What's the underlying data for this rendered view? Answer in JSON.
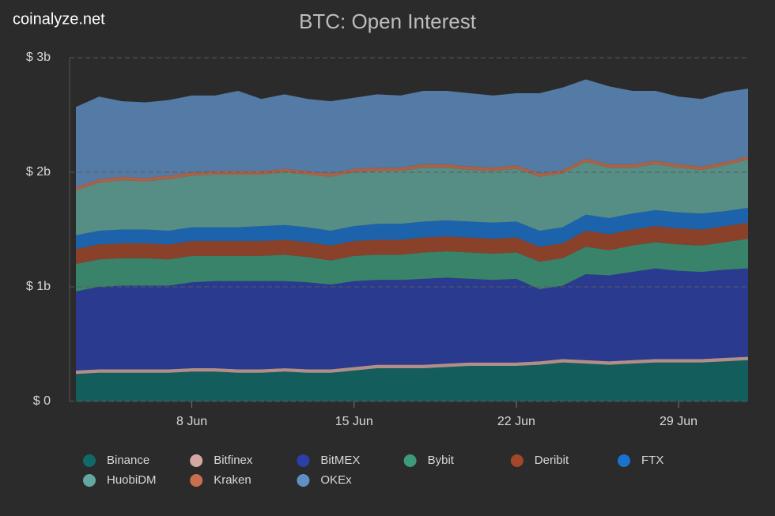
{
  "brand": "coinalyze.net",
  "chart_data": {
    "type": "stacked-area",
    "title": "BTC: Open Interest",
    "categories": [
      null,
      null,
      null,
      null,
      null,
      "8 Jun",
      null,
      null,
      null,
      null,
      null,
      null,
      "15 Jun",
      null,
      null,
      null,
      null,
      null,
      null,
      "22 Jun",
      null,
      null,
      null,
      null,
      null,
      null,
      "29 Jun",
      null,
      null,
      null
    ],
    "ylim": [
      0,
      3
    ],
    "yticks": [
      {
        "value": 0,
        "label": "$ 0"
      },
      {
        "value": 1,
        "label": "$ 1b"
      },
      {
        "value": 2,
        "label": "$ 2b"
      },
      {
        "value": 3,
        "label": "$ 3b"
      }
    ],
    "grid": true,
    "series": [
      {
        "name": "Binance",
        "color": "#0f6a6a",
        "values": [
          0.24,
          0.25,
          0.25,
          0.25,
          0.25,
          0.26,
          0.26,
          0.25,
          0.25,
          0.26,
          0.25,
          0.25,
          0.27,
          0.29,
          0.29,
          0.29,
          0.3,
          0.31,
          0.31,
          0.31,
          0.32,
          0.34,
          0.33,
          0.32,
          0.33,
          0.34,
          0.34,
          0.34,
          0.35,
          0.36
        ]
      },
      {
        "name": "Bitfinex",
        "color": "#d4a8a0",
        "values": [
          0.03,
          0.03,
          0.03,
          0.03,
          0.03,
          0.03,
          0.03,
          0.03,
          0.03,
          0.03,
          0.03,
          0.03,
          0.03,
          0.03,
          0.03,
          0.03,
          0.03,
          0.03,
          0.03,
          0.03,
          0.03,
          0.03,
          0.03,
          0.03,
          0.03,
          0.03,
          0.03,
          0.03,
          0.03,
          0.03
        ]
      },
      {
        "name": "BitMEX",
        "color": "#2a3fa8",
        "values": [
          0.69,
          0.72,
          0.73,
          0.73,
          0.73,
          0.75,
          0.76,
          0.77,
          0.77,
          0.76,
          0.76,
          0.74,
          0.75,
          0.74,
          0.74,
          0.75,
          0.75,
          0.73,
          0.72,
          0.73,
          0.63,
          0.64,
          0.75,
          0.75,
          0.77,
          0.79,
          0.77,
          0.76,
          0.77,
          0.77
        ]
      },
      {
        "name": "Bybit",
        "color": "#3d9a7a",
        "values": [
          0.24,
          0.24,
          0.24,
          0.24,
          0.23,
          0.23,
          0.22,
          0.22,
          0.22,
          0.23,
          0.22,
          0.21,
          0.22,
          0.22,
          0.22,
          0.23,
          0.23,
          0.23,
          0.23,
          0.23,
          0.24,
          0.24,
          0.24,
          0.22,
          0.23,
          0.23,
          0.23,
          0.23,
          0.24,
          0.26
        ]
      },
      {
        "name": "Deribit",
        "color": "#a2472a",
        "values": [
          0.13,
          0.13,
          0.13,
          0.13,
          0.13,
          0.13,
          0.13,
          0.13,
          0.13,
          0.13,
          0.13,
          0.13,
          0.13,
          0.13,
          0.13,
          0.13,
          0.13,
          0.13,
          0.13,
          0.13,
          0.13,
          0.13,
          0.14,
          0.14,
          0.14,
          0.14,
          0.14,
          0.14,
          0.14,
          0.14
        ]
      },
      {
        "name": "FTX",
        "color": "#1a72cc",
        "values": [
          0.12,
          0.12,
          0.12,
          0.12,
          0.12,
          0.12,
          0.12,
          0.12,
          0.13,
          0.13,
          0.13,
          0.13,
          0.13,
          0.14,
          0.14,
          0.14,
          0.14,
          0.14,
          0.14,
          0.14,
          0.14,
          0.14,
          0.14,
          0.14,
          0.14,
          0.14,
          0.14,
          0.14,
          0.13,
          0.13
        ]
      },
      {
        "name": "HuobiDM",
        "color": "#62a89e",
        "values": [
          0.39,
          0.42,
          0.43,
          0.42,
          0.45,
          0.45,
          0.46,
          0.46,
          0.45,
          0.46,
          0.46,
          0.47,
          0.47,
          0.46,
          0.46,
          0.47,
          0.46,
          0.45,
          0.45,
          0.46,
          0.47,
          0.47,
          0.46,
          0.44,
          0.4,
          0.4,
          0.39,
          0.38,
          0.4,
          0.42
        ]
      },
      {
        "name": "Kraken",
        "color": "#c96f50",
        "values": [
          0.03,
          0.03,
          0.03,
          0.03,
          0.03,
          0.03,
          0.03,
          0.03,
          0.03,
          0.03,
          0.03,
          0.03,
          0.03,
          0.03,
          0.03,
          0.03,
          0.03,
          0.03,
          0.03,
          0.03,
          0.03,
          0.03,
          0.03,
          0.03,
          0.03,
          0.03,
          0.03,
          0.03,
          0.03,
          0.03
        ]
      },
      {
        "name": "OKEx",
        "color": "#5f90c4",
        "values": [
          0.7,
          0.72,
          0.66,
          0.66,
          0.66,
          0.67,
          0.66,
          0.7,
          0.63,
          0.65,
          0.63,
          0.63,
          0.62,
          0.64,
          0.63,
          0.64,
          0.64,
          0.64,
          0.63,
          0.63,
          0.7,
          0.72,
          0.69,
          0.68,
          0.64,
          0.61,
          0.59,
          0.59,
          0.61,
          0.59
        ]
      }
    ]
  }
}
